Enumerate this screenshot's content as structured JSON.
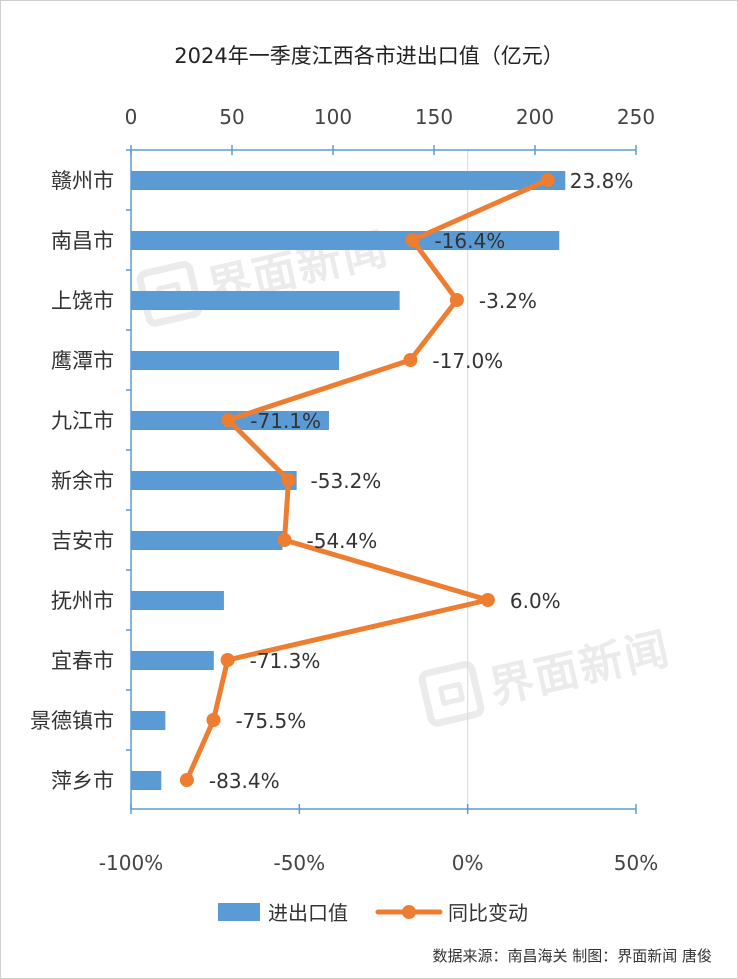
{
  "chart_data": {
    "type": "bar",
    "title": "2024年一季度江西各市进出口值（亿元）",
    "categories": [
      "赣州市",
      "南昌市",
      "上饶市",
      "鹰潭市",
      "九江市",
      "新余市",
      "吉安市",
      "抚州市",
      "宜春市",
      "景德镇市",
      "萍乡市"
    ],
    "series": [
      {
        "name": "进出口值",
        "type": "bar",
        "axis": "top",
        "color": "#5b9bd5",
        "values": [
          215,
          212,
          133,
          103,
          98,
          82,
          75,
          46,
          41,
          17,
          15
        ]
      },
      {
        "name": "同比变动",
        "type": "line",
        "axis": "bottom",
        "color": "#ed7d31",
        "values": [
          23.8,
          -16.4,
          -3.2,
          -17.0,
          -71.1,
          -53.2,
          -54.4,
          6.0,
          -71.3,
          -75.5,
          -83.4
        ],
        "labels": [
          "23.8%",
          "-16.4%",
          "-3.2%",
          "-17.0%",
          "-71.1%",
          "-53.2%",
          "-54.4%",
          "6.0%",
          "-71.3%",
          "-75.5%",
          "-83.4%"
        ]
      }
    ],
    "top_axis": {
      "range": [
        0,
        250
      ],
      "ticks": [
        "0",
        "50",
        "100",
        "150",
        "200",
        "250"
      ]
    },
    "bottom_axis": {
      "range": [
        -100,
        50
      ],
      "ticks": [
        "-100%",
        "-50%",
        "0%",
        "50%"
      ]
    },
    "gridline_at_zero_percent": true,
    "legend_position": "bottom"
  },
  "source": "数据来源：南昌海关  制图：界面新闻 唐俊",
  "watermark": "界面新闻"
}
